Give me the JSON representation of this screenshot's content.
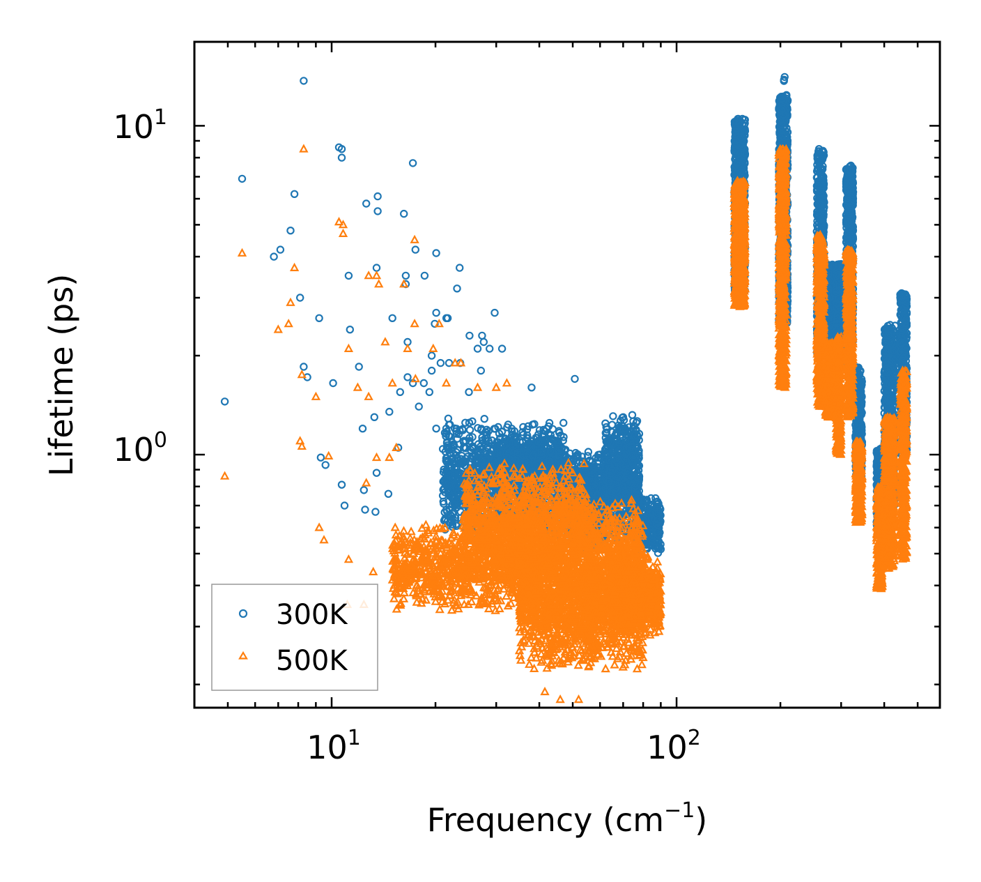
{
  "chart_data": {
    "type": "scatter",
    "title": "",
    "xlabel": "Frequency (cm",
    "xlabel_sup": "−1",
    "xlabel_suffix": ")",
    "ylabel": "Lifetime (ps)",
    "xscale": "log",
    "yscale": "log",
    "xlim": [
      4.0,
      580.0
    ],
    "ylim": [
      0.17,
      18.0
    ],
    "x_ticks": [
      {
        "base": "10",
        "exp": "1",
        "value": 10
      },
      {
        "base": "10",
        "exp": "2",
        "value": 100
      }
    ],
    "y_ticks": [
      {
        "base": "10",
        "exp": "0",
        "value": 1
      },
      {
        "base": "10",
        "exp": "1",
        "value": 10
      }
    ],
    "legend_position": "lower-left",
    "colors": {
      "s300": "#1f77b4",
      "s500": "#ff7f0e"
    },
    "series": [
      {
        "name": "300K",
        "marker": "circle",
        "color": "#1f77b4",
        "points": [
          [
            8.3,
            13.7
          ],
          [
            5.5,
            6.9
          ],
          [
            10.5,
            8.6
          ],
          [
            10.7,
            8.5
          ],
          [
            10.7,
            8.0
          ],
          [
            17.2,
            7.7
          ],
          [
            7.8,
            6.2
          ],
          [
            13.6,
            6.1
          ],
          [
            12.6,
            5.8
          ],
          [
            13.6,
            5.5
          ],
          [
            16.2,
            5.4
          ],
          [
            7.6,
            4.8
          ],
          [
            7.1,
            4.2
          ],
          [
            6.8,
            4.0
          ],
          [
            20.1,
            4.1
          ],
          [
            17.5,
            4.2
          ],
          [
            13.5,
            3.7
          ],
          [
            23.5,
            3.7
          ],
          [
            11.2,
            3.5
          ],
          [
            16.4,
            3.5
          ],
          [
            18.6,
            3.5
          ],
          [
            16.4,
            3.3
          ],
          [
            23.1,
            3.2
          ],
          [
            8.1,
            3.0
          ],
          [
            9.2,
            2.6
          ],
          [
            21.5,
            2.6
          ],
          [
            20.1,
            2.7
          ],
          [
            29.7,
            2.7
          ],
          [
            19.9,
            2.5
          ],
          [
            21.7,
            2.6
          ],
          [
            15.0,
            2.6
          ],
          [
            11.3,
            2.4
          ],
          [
            27.3,
            2.3
          ],
          [
            25.1,
            2.3
          ],
          [
            16.6,
            2.2
          ],
          [
            26.5,
            2.1
          ],
          [
            27.6,
            2.2
          ],
          [
            31.2,
            2.1
          ],
          [
            28.7,
            2.1
          ],
          [
            19.5,
            2.0
          ],
          [
            20.7,
            1.9
          ],
          [
            21.9,
            1.9
          ],
          [
            23.6,
            1.9
          ],
          [
            8.3,
            1.85
          ],
          [
            12.0,
            1.85
          ],
          [
            8.5,
            1.72
          ],
          [
            10.1,
            1.65
          ],
          [
            16.6,
            1.72
          ],
          [
            18.5,
            1.65
          ],
          [
            27.1,
            1.8
          ],
          [
            19.5,
            1.8
          ],
          [
            4.9,
            1.45
          ],
          [
            15.8,
            1.55
          ],
          [
            19.2,
            1.55
          ],
          [
            25.0,
            1.55
          ],
          [
            17.2,
            1.65
          ],
          [
            38.0,
            1.6
          ],
          [
            50.7,
            1.7
          ],
          [
            14.7,
            1.35
          ],
          [
            13.3,
            1.3
          ],
          [
            17.9,
            1.4
          ],
          [
            20.1,
            1.2
          ],
          [
            24.5,
            1.1
          ],
          [
            15.6,
            1.05
          ],
          [
            12.3,
            1.2
          ],
          [
            9.3,
            0.98
          ],
          [
            9.6,
            0.93
          ],
          [
            13.5,
            0.88
          ],
          [
            10.7,
            0.81
          ],
          [
            12.4,
            0.78
          ],
          [
            14.6,
            0.76
          ],
          [
            10.9,
            0.7
          ],
          [
            12.5,
            0.68
          ],
          [
            13.4,
            0.67
          ],
          [
            70.0,
            1.3
          ],
          [
            75.0,
            1.2
          ],
          [
            82.0,
            0.72
          ],
          [
            84.0,
            0.7
          ],
          [
            85.0,
            0.68
          ],
          [
            88.0,
            0.72
          ],
          [
            80.0,
            0.62
          ],
          [
            78.0,
            0.55
          ],
          [
            60.0,
            1.0
          ],
          [
            64.0,
            0.95
          ],
          [
            66.0,
            1.05
          ]
        ],
        "clusters": [
          {
            "x": [
              21.0,
              48.0
            ],
            "y": [
              0.55,
              1.3
            ],
            "count": 1200
          },
          {
            "x": [
              30.0,
              46.0
            ],
            "y": [
              0.75,
              1.15
            ],
            "count": 600
          },
          {
            "x": [
              48.0,
              62.0
            ],
            "y": [
              0.5,
              1.05
            ],
            "count": 700
          },
          {
            "x": [
              62.0,
              78.0
            ],
            "y": [
              0.55,
              1.35
            ],
            "count": 700
          },
          {
            "x": [
              76.0,
              90.0
            ],
            "y": [
              0.5,
              0.75
            ],
            "count": 300
          }
        ],
        "bands": [
          {
            "x": [
              147.0,
              158.0
            ],
            "y": [
              3.0,
              10.5
            ],
            "count": 700
          },
          {
            "x": [
              198.0,
              210.0
            ],
            "y": [
              2.5,
              12.5
            ],
            "count": 700
          },
          {
            "x": [
              255.0,
              268.0
            ],
            "y": [
              2.0,
              8.5
            ],
            "count": 500
          },
          {
            "x": [
              270.0,
              285.0
            ],
            "y": [
              2.0,
              3.8
            ],
            "count": 300
          },
          {
            "x": [
              290.0,
              300.0
            ],
            "y": [
              1.9,
              3.8
            ],
            "count": 300
          },
          {
            "x": [
              310.0,
              325.0
            ],
            "y": [
              2.2,
              7.5
            ],
            "count": 500
          },
          {
            "x": [
              330.0,
              345.0
            ],
            "y": [
              0.85,
              1.85
            ],
            "count": 300
          },
          {
            "x": [
              380.0,
              395.0
            ],
            "y": [
              0.6,
              1.05
            ],
            "count": 250
          },
          {
            "x": [
              400.0,
              430.0
            ],
            "y": [
              0.7,
              2.5
            ],
            "count": 500
          },
          {
            "x": [
              445.0,
              465.0
            ],
            "y": [
              1.0,
              3.1
            ],
            "count": 450
          },
          {
            "x": [
              202.0,
              206.0
            ],
            "y": [
              13.5,
              14.3
            ],
            "count": 3
          },
          {
            "x": [
              318.0,
              322.0
            ],
            "y": [
              7.2,
              7.6
            ],
            "count": 2
          }
        ]
      },
      {
        "name": "500K",
        "marker": "triangle",
        "color": "#ff7f0e",
        "points": [
          [
            8.3,
            8.5
          ],
          [
            10.5,
            5.1
          ],
          [
            10.8,
            5.0
          ],
          [
            10.8,
            4.7
          ],
          [
            5.5,
            4.1
          ],
          [
            17.4,
            4.5
          ],
          [
            7.8,
            3.7
          ],
          [
            13.5,
            3.5
          ],
          [
            12.8,
            3.5
          ],
          [
            16.2,
            3.3
          ],
          [
            13.7,
            3.3
          ],
          [
            7.6,
            2.9
          ],
          [
            20.5,
            2.5
          ],
          [
            7.0,
            2.4
          ],
          [
            7.5,
            2.5
          ],
          [
            17.4,
            2.5
          ],
          [
            14.3,
            2.2
          ],
          [
            16.6,
            2.1
          ],
          [
            11.2,
            2.1
          ],
          [
            19.7,
            2.1
          ],
          [
            22.8,
            1.9
          ],
          [
            23.7,
            1.9
          ],
          [
            8.2,
            1.75
          ],
          [
            15.0,
            1.65
          ],
          [
            21.5,
            1.65
          ],
          [
            9.0,
            1.5
          ],
          [
            11.9,
            1.6
          ],
          [
            12.8,
            1.5
          ],
          [
            17.5,
            1.7
          ],
          [
            26.5,
            1.6
          ],
          [
            30.0,
            1.6
          ],
          [
            32.2,
            1.65
          ],
          [
            8.1,
            1.1
          ],
          [
            8.2,
            1.06
          ],
          [
            9.8,
            0.99
          ],
          [
            14.7,
            0.98
          ],
          [
            15.4,
            1.05
          ],
          [
            13.5,
            0.98
          ],
          [
            12.6,
            0.82
          ],
          [
            9.2,
            0.6
          ],
          [
            9.5,
            0.55
          ],
          [
            11.2,
            0.48
          ],
          [
            4.9,
            0.86
          ],
          [
            11.1,
            0.35
          ],
          [
            12.4,
            0.35
          ],
          [
            13.2,
            0.44
          ],
          [
            41.5,
            0.19
          ],
          [
            46.0,
            0.18
          ],
          [
            52.0,
            0.18
          ]
        ],
        "clusters": [
          {
            "x": [
              15.0,
              40.0
            ],
            "y": [
              0.33,
              0.62
            ],
            "count": 900
          },
          {
            "x": [
              24.0,
              55.0
            ],
            "y": [
              0.4,
              0.95
            ],
            "count": 1100
          },
          {
            "x": [
              35.0,
              60.0
            ],
            "y": [
              0.22,
              0.65
            ],
            "count": 1200
          },
          {
            "x": [
              55.0,
              80.0
            ],
            "y": [
              0.22,
              0.75
            ],
            "count": 1000
          },
          {
            "x": [
              65.0,
              90.0
            ],
            "y": [
              0.28,
              0.5
            ],
            "count": 700
          }
        ],
        "bands": [
          {
            "x": [
              147.0,
              158.0
            ],
            "y": [
              2.8,
              6.8
            ],
            "count": 700
          },
          {
            "x": [
              198.0,
              208.0
            ],
            "y": [
              1.6,
              8.5
            ],
            "count": 700
          },
          {
            "x": [
              255.0,
              268.0
            ],
            "y": [
              1.4,
              4.7
            ],
            "count": 500
          },
          {
            "x": [
              270.0,
              285.0
            ],
            "y": [
              1.3,
              2.2
            ],
            "count": 300
          },
          {
            "x": [
              290.0,
              300.0
            ],
            "y": [
              1.0,
              2.3
            ],
            "count": 300
          },
          {
            "x": [
              310.0,
              325.0
            ],
            "y": [
              1.3,
              4.2
            ],
            "count": 500
          },
          {
            "x": [
              330.0,
              345.0
            ],
            "y": [
              0.62,
              1.1
            ],
            "count": 300
          },
          {
            "x": [
              380.0,
              395.0
            ],
            "y": [
              0.39,
              0.8
            ],
            "count": 250
          },
          {
            "x": [
              400.0,
              430.0
            ],
            "y": [
              0.45,
              1.3
            ],
            "count": 500
          },
          {
            "x": [
              445.0,
              465.0
            ],
            "y": [
              0.48,
              1.8
            ],
            "count": 450
          }
        ]
      }
    ]
  }
}
